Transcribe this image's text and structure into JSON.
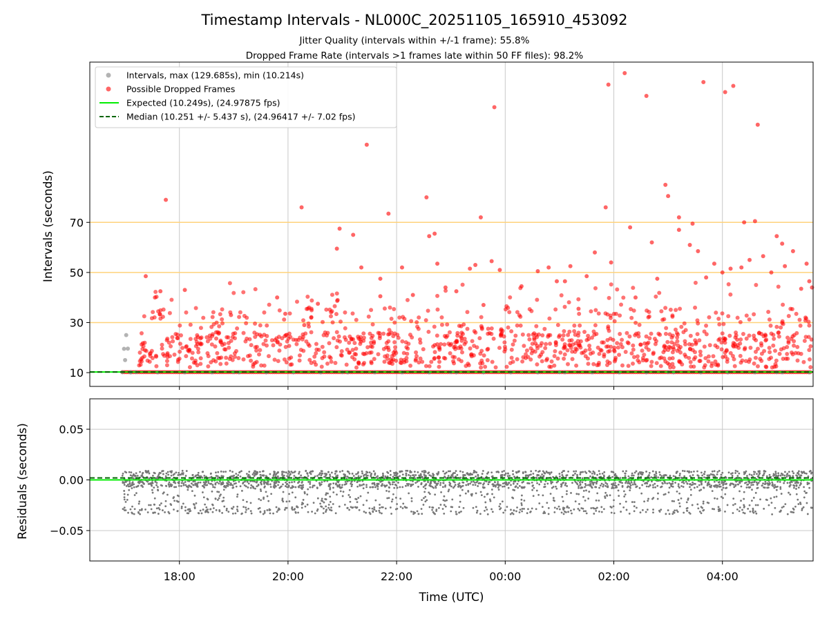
{
  "chart_data": [
    {
      "type": "scatter",
      "title": "Timestamp Intervals - NL000C_20251105_165910_453092",
      "subtitle_lines": [
        "Jitter Quality (intervals within +/-1 frame): 55.8%",
        "Dropped Frame Rate (intervals >1 frames late within 50 FF files): 98.2%"
      ],
      "xlabel": "",
      "ylabel": "Intervals (seconds)",
      "x_unit": "hours since 18:00 UTC",
      "xlim": [
        -1.65,
        11.67
      ],
      "ylim": [
        4.5,
        134
      ],
      "x_tick_positions": [
        0,
        2,
        4,
        6,
        8,
        10
      ],
      "x_tick_labels": [
        "18:00",
        "20:00",
        "22:00",
        "00:00",
        "02:00",
        "04:00"
      ],
      "y_ticks": [
        10,
        30,
        50,
        70
      ],
      "grid": true,
      "legend_location": "upper-left",
      "legend": [
        "Intervals, max (129.685s), min (10.214s)",
        "Possible Dropped Frames",
        "Expected (10.249s), (24.97875 fps)",
        "Median (10.251 +/- 5.437 s), (24.96417 +/- 7.02 fps)"
      ],
      "reference_lines": [
        {
          "name": "Expected",
          "value": 10.249,
          "color": "#00ee00",
          "style": "solid"
        },
        {
          "name": "Median",
          "value": 10.251,
          "color": "#006400",
          "style": "dashed"
        }
      ],
      "threshold_lines": [
        30,
        50,
        70
      ],
      "threshold_color": "#ffd27a",
      "series": [
        {
          "name": "Intervals",
          "color": "#808080",
          "points": [
            [
              -1.02,
              19.5
            ],
            [
              -0.98,
              25.0
            ],
            [
              -1.0,
              15.0
            ],
            [
              -0.95,
              19.6
            ],
            [
              -1.05,
              10.2
            ],
            [
              -0.9,
              10.2
            ],
            [
              -0.8,
              10.2
            ],
            [
              1.0,
              10.2
            ],
            [
              3.0,
              10.2
            ],
            [
              5.0,
              10.2
            ],
            [
              7.0,
              10.2
            ],
            [
              9.0,
              10.2
            ],
            [
              11.0,
              10.2
            ]
          ]
        },
        {
          "name": "Possible Dropped Frames",
          "color": "#ff0000",
          "points": [
            [
              -0.62,
              48.5
            ],
            [
              -0.25,
              79.0
            ],
            [
              0.1,
              43.0
            ],
            [
              -0.45,
              40.0
            ],
            [
              -0.35,
              42.5
            ],
            [
              0.95,
              33.0
            ],
            [
              1.8,
              40.0
            ],
            [
              1.95,
              33.5
            ],
            [
              2.25,
              76.0
            ],
            [
              2.3,
              29.0
            ],
            [
              2.55,
              37.5
            ],
            [
              2.9,
              59.5
            ],
            [
              2.95,
              67.5
            ],
            [
              3.2,
              65.0
            ],
            [
              3.35,
              52.0
            ],
            [
              3.45,
              101.0
            ],
            [
              3.7,
              47.5
            ],
            [
              3.7,
              40.5
            ],
            [
              3.85,
              73.5
            ],
            [
              4.1,
              52.0
            ],
            [
              4.3,
              41.0
            ],
            [
              4.55,
              80.0
            ],
            [
              4.6,
              64.5
            ],
            [
              4.7,
              65.5
            ],
            [
              4.75,
              53.5
            ],
            [
              4.9,
              44.0
            ],
            [
              5.1,
              42.5
            ],
            [
              5.35,
              51.5
            ],
            [
              5.45,
              53.0
            ],
            [
              5.55,
              72.0
            ],
            [
              5.6,
              37.0
            ],
            [
              5.75,
              54.5
            ],
            [
              5.8,
              116.0
            ],
            [
              5.9,
              51.0
            ],
            [
              6.3,
              44.5
            ],
            [
              6.6,
              50.5
            ],
            [
              6.8,
              52.0
            ],
            [
              6.95,
              46.5
            ],
            [
              7.1,
              46.5
            ],
            [
              7.2,
              52.5
            ],
            [
              7.35,
              35.5
            ],
            [
              7.5,
              48.5
            ],
            [
              7.65,
              58.0
            ],
            [
              7.85,
              76.0
            ],
            [
              7.9,
              125.0
            ],
            [
              7.95,
              54.0
            ],
            [
              8.2,
              129.6
            ],
            [
              8.3,
              68.0
            ],
            [
              8.4,
              40.0
            ],
            [
              8.6,
              120.5
            ],
            [
              8.7,
              62.0
            ],
            [
              8.8,
              47.5
            ],
            [
              8.95,
              85.0
            ],
            [
              9.0,
              80.5
            ],
            [
              9.2,
              72.0
            ],
            [
              9.2,
              67.0
            ],
            [
              9.4,
              61.0
            ],
            [
              9.45,
              69.5
            ],
            [
              9.55,
              58.5
            ],
            [
              9.65,
              126.0
            ],
            [
              9.7,
              48.0
            ],
            [
              9.85,
              53.5
            ],
            [
              10.0,
              50.0
            ],
            [
              10.05,
              122.0
            ],
            [
              10.15,
              51.5
            ],
            [
              10.2,
              124.5
            ],
            [
              10.35,
              52.0
            ],
            [
              10.4,
              70.0
            ],
            [
              10.5,
              55.0
            ],
            [
              10.6,
              70.5
            ],
            [
              10.65,
              109.0
            ],
            [
              10.75,
              56.5
            ],
            [
              10.9,
              50.0
            ],
            [
              11.0,
              64.5
            ],
            [
              11.1,
              61.5
            ],
            [
              11.15,
              52.5
            ],
            [
              11.3,
              58.5
            ],
            [
              11.45,
              43.5
            ],
            [
              11.55,
              53.5
            ],
            [
              11.6,
              46.5
            ],
            [
              11.65,
              44.0
            ]
          ]
        }
      ],
      "dense_cluster_note": "plus several hundred unlabeled red markers concentrated between 10 and 45 seconds across the whole time range"
    },
    {
      "type": "scatter",
      "title": "",
      "xlabel": "Time (UTC)",
      "ylabel": "Residuals (seconds)",
      "xlim": [
        -1.65,
        11.67
      ],
      "ylim": [
        -0.08,
        0.08
      ],
      "x_tick_positions": [
        0,
        2,
        4,
        6,
        8,
        10
      ],
      "x_tick_labels": [
        "18:00",
        "20:00",
        "22:00",
        "00:00",
        "02:00",
        "04:00"
      ],
      "y_ticks": [
        -0.05,
        0.0,
        0.05
      ],
      "y_tick_labels": [
        "−0.05",
        "0.00",
        "0.05"
      ],
      "grid": true,
      "reference_lines": [
        {
          "name": "Expected",
          "value": 0.0,
          "color": "#00ee00",
          "style": "solid"
        },
        {
          "name": "Median",
          "value": 0.002,
          "color": "#006400",
          "style": "dashed"
        }
      ],
      "series": [
        {
          "name": "Residuals",
          "color": "#777777",
          "range_min": -0.036,
          "range_max": 0.009,
          "points": [
            [
              -1.0,
              0.008
            ],
            [
              -0.9,
              -0.029
            ],
            [
              -0.5,
              -0.01
            ],
            [
              0.0,
              0.005
            ],
            [
              0.5,
              -0.03
            ],
            [
              1.0,
              0.0
            ],
            [
              1.5,
              -0.02
            ],
            [
              2.0,
              0.006
            ],
            [
              2.5,
              -0.033
            ],
            [
              3.0,
              -0.005
            ],
            [
              3.5,
              -0.028
            ],
            [
              4.0,
              0.002
            ],
            [
              4.5,
              -0.018
            ],
            [
              5.0,
              -0.031
            ],
            [
              5.5,
              0.004
            ],
            [
              6.0,
              -0.03
            ],
            [
              6.5,
              -0.01
            ],
            [
              7.0,
              0.006
            ],
            [
              7.5,
              -0.033
            ],
            [
              8.0,
              -0.02
            ],
            [
              8.5,
              0.003
            ],
            [
              9.0,
              -0.03
            ],
            [
              9.5,
              -0.004
            ],
            [
              10.0,
              0.007
            ],
            [
              10.5,
              -0.025
            ],
            [
              11.0,
              -0.01
            ],
            [
              11.5,
              0.008
            ]
          ]
        }
      ]
    }
  ]
}
